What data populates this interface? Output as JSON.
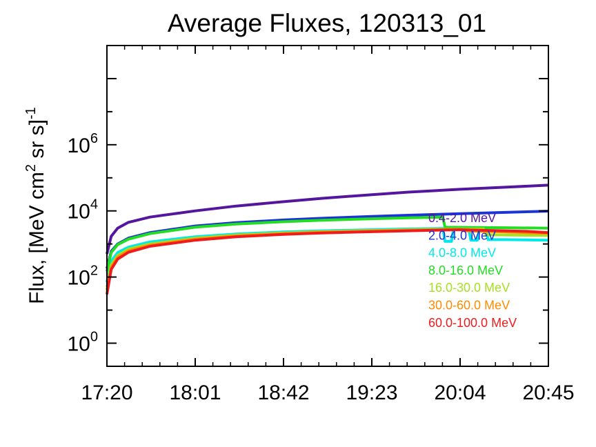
{
  "chart_data": {
    "type": "line",
    "title": "Average Fluxes, 120313_01",
    "ylabel": "Flux, [MeV cm",
    "ylabel_sup1": "2",
    "ylabel_mid": " sr s]",
    "ylabel_sup2": "-1",
    "x_ticks": [
      "17:20",
      "18:01",
      "18:42",
      "19:23",
      "20:04",
      "20:45"
    ],
    "x_range_minutes": [
      0,
      205
    ],
    "y_scale": "log",
    "y_range": [
      0.2,
      1000000000
    ],
    "y_ticks": [
      {
        "base": "10",
        "exp": "0",
        "value": 1
      },
      {
        "base": "10",
        "exp": "2",
        "value": 100
      },
      {
        "base": "10",
        "exp": "4",
        "value": 10000
      },
      {
        "base": "10",
        "exp": "6",
        "value": 1000000
      }
    ],
    "grid": false,
    "legend_position": "right-lower",
    "series": [
      {
        "name": "0.4-2.0 MeV",
        "color": "#55169e",
        "x": [
          0,
          2,
          5,
          10,
          20,
          41,
          60,
          82,
          100,
          123,
          140,
          164,
          185,
          205
        ],
        "y": [
          500,
          1700,
          3000,
          4500,
          6500,
          10000,
          14000,
          19000,
          24000,
          31000,
          37000,
          45000,
          52000,
          60000
        ]
      },
      {
        "name": "2.0-4.0 MeV",
        "color": "#1a34d6",
        "x": [
          0,
          2,
          5,
          10,
          20,
          41,
          60,
          82,
          100,
          123,
          140,
          164,
          185,
          205
        ],
        "y": [
          180,
          600,
          1000,
          1500,
          2200,
          3500,
          4400,
          5300,
          6000,
          6800,
          7400,
          8200,
          9000,
          9800
        ]
      },
      {
        "name": "4.0-8.0 MeV",
        "color": "#00e8e8",
        "x": [
          0,
          2,
          5,
          10,
          20,
          41,
          60,
          82,
          100,
          123,
          140,
          156,
          157,
          160,
          161,
          168,
          169,
          172,
          173,
          176,
          177,
          185,
          205
        ],
        "y": [
          70,
          300,
          550,
          800,
          1150,
          1650,
          2000,
          2300,
          2500,
          2700,
          2850,
          2950,
          1200,
          1200,
          2900,
          2900,
          1300,
          1300,
          2900,
          2900,
          1350,
          1350,
          1300
        ]
      },
      {
        "name": "8.0-16.0 MeV",
        "color": "#22dd22",
        "x": [
          0,
          2,
          5,
          10,
          20,
          41,
          60,
          82,
          100,
          123,
          140,
          156,
          157,
          185,
          205
        ],
        "y": [
          150,
          550,
          950,
          1400,
          2050,
          3200,
          4000,
          4700,
          5200,
          5800,
          6200,
          6500,
          3200,
          3100,
          3000
        ]
      },
      {
        "name": "16.0-30.0 MeV",
        "color": "#a6e020",
        "x": [
          0,
          2,
          5,
          10,
          20,
          41,
          60,
          82,
          100,
          123,
          140,
          160,
          175,
          176,
          205
        ],
        "y": [
          50,
          230,
          450,
          700,
          1000,
          1500,
          1850,
          2150,
          2350,
          2550,
          2700,
          2800,
          2850,
          1900,
          1800
        ]
      },
      {
        "name": "30.0-60.0 MeV",
        "color": "#ff8c00",
        "x": [
          0,
          2,
          5,
          10,
          20,
          41,
          60,
          82,
          100,
          123,
          140,
          164,
          166,
          185,
          205
        ],
        "y": [
          40,
          200,
          400,
          620,
          920,
          1400,
          1750,
          2050,
          2250,
          2450,
          2600,
          2750,
          2500,
          2300,
          2100
        ]
      },
      {
        "name": "60.0-100.0 MeV",
        "color": "#ee1c1c",
        "x": [
          0,
          2,
          5,
          10,
          20,
          41,
          60,
          82,
          100,
          123,
          140,
          164,
          185,
          195,
          205
        ],
        "y": [
          30,
          170,
          350,
          560,
          850,
          1300,
          1650,
          1950,
          2150,
          2350,
          2500,
          2700,
          2500,
          2400,
          2200
        ]
      }
    ]
  }
}
